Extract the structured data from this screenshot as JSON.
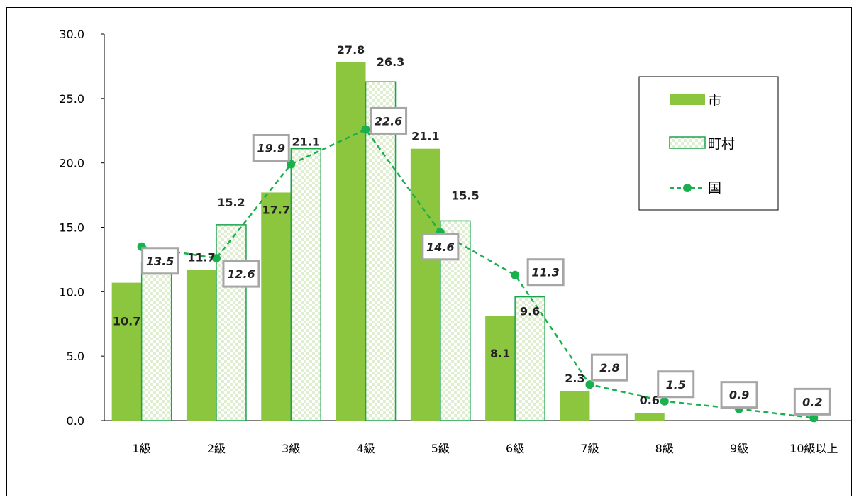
{
  "colors": {
    "city_fill": "#8cc63f",
    "town_stroke": "#1aa34a",
    "town_pattern": "#dfeecf",
    "national_line": "#1ab04e",
    "national_box": "#a6a6a6",
    "axis": "#000000"
  },
  "chart_data": {
    "type": "bar",
    "title": "",
    "xlabel": "",
    "ylabel": "",
    "ylim": [
      0,
      30
    ],
    "ytick_labels": [
      "0.0",
      "5.0",
      "10.0",
      "15.0",
      "20.0",
      "25.0",
      "30.0"
    ],
    "categories": [
      "1級",
      "2級",
      "3級",
      "4級",
      "5級",
      "6級",
      "7級",
      "8級",
      "9級",
      "10級以上"
    ],
    "series": [
      {
        "name": "市",
        "type": "bar",
        "values": [
          10.7,
          11.7,
          17.7,
          27.8,
          21.1,
          8.1,
          2.3,
          0.6,
          null,
          null
        ],
        "labels": [
          "10.7",
          "11.7",
          "17.7",
          "27.8",
          "21.1",
          "8.1",
          "2.3",
          "0.6",
          "",
          ""
        ]
      },
      {
        "name": "町村",
        "type": "bar",
        "values": [
          12.3,
          15.2,
          21.1,
          26.3,
          15.5,
          9.6,
          null,
          null,
          null,
          null
        ],
        "labels": [
          "12.3",
          "15.2",
          "21.1",
          "26.3",
          "15.5",
          "9.6",
          "",
          "",
          "",
          ""
        ]
      },
      {
        "name": "国",
        "type": "line",
        "values": [
          13.5,
          12.6,
          19.9,
          22.6,
          14.6,
          11.3,
          2.8,
          1.5,
          0.9,
          0.2
        ],
        "labels": [
          "13.5",
          "12.6",
          "19.9",
          "22.6",
          "14.6",
          "11.3",
          "2.8",
          "1.5",
          "0.9",
          "0.2"
        ]
      }
    ],
    "legend": {
      "position": "top-right",
      "entries": [
        "市",
        "町村",
        "国"
      ]
    },
    "grid": false
  }
}
